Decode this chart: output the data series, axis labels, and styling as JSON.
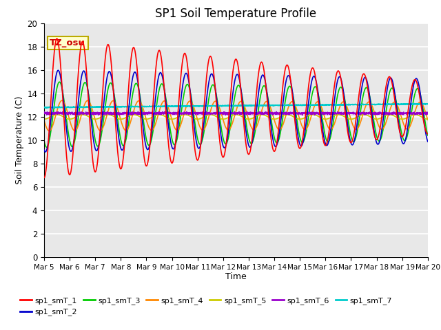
{
  "title": "SP1 Soil Temperature Profile",
  "xlabel": "Time",
  "ylabel": "Soil Temperature (C)",
  "ylim": [
    0,
    20
  ],
  "duration_days": 15,
  "x_tick_labels": [
    "Mar 5",
    "Mar 6",
    "Mar 7",
    "Mar 8",
    "Mar 9",
    "Mar 10",
    "Mar 11",
    "Mar 12",
    "Mar 13",
    "Mar 14",
    "Mar 15",
    "Mar 16",
    "Mar 17",
    "Mar 18",
    "Mar 19",
    "Mar 20"
  ],
  "annotation_text": "TZ_osu",
  "annotation_color": "#cc0000",
  "annotation_bg": "#ffffcc",
  "annotation_border": "#bbaa00",
  "bg_color": "#e8e8e8",
  "grid_color": "#ffffff",
  "series_colors": {
    "sp1_smT_1": "#ff0000",
    "sp1_smT_2": "#0000cc",
    "sp1_smT_3": "#00cc00",
    "sp1_smT_4": "#ff8800",
    "sp1_smT_5": "#cccc00",
    "sp1_smT_6": "#9900cc",
    "sp1_smT_7": "#00cccc"
  },
  "n_points": 3000,
  "figsize": [
    6.4,
    4.8
  ],
  "dpi": 100
}
